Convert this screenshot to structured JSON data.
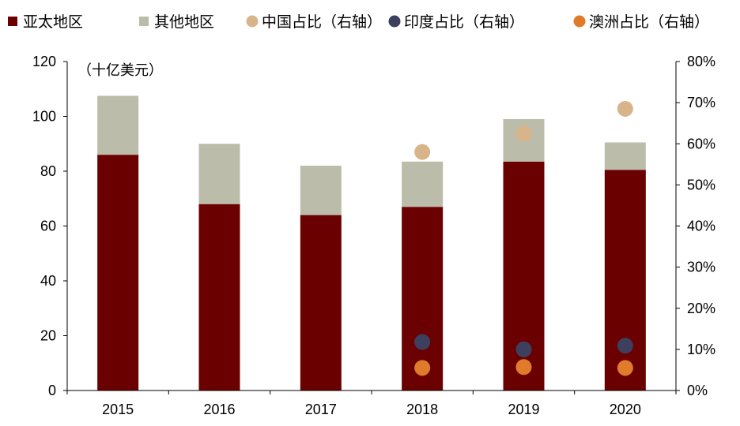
{
  "chart_data": {
    "type": "bar",
    "unit_label": "（十亿美元）",
    "categories": [
      "2015",
      "2016",
      "2017",
      "2018",
      "2019",
      "2020"
    ],
    "bar_series": [
      {
        "name": "亚太地区",
        "color": "#6b0000",
        "values": [
          86,
          68,
          64,
          67,
          83.5,
          80.5
        ]
      },
      {
        "name": "其他地区",
        "color": "#bcbcaa",
        "values": [
          21.5,
          22,
          18,
          16.5,
          15.5,
          10
        ]
      }
    ],
    "point_series": [
      {
        "name": "中国占比（右轴）",
        "color": "#d8b48a",
        "values": [
          null,
          null,
          null,
          0.58,
          0.625,
          0.685
        ]
      },
      {
        "name": "印度占比（右轴）",
        "color": "#3d3f5f",
        "values": [
          null,
          null,
          null,
          0.118,
          0.1,
          0.109
        ]
      },
      {
        "name": "澳洲占比（右轴）",
        "color": "#e07b2b",
        "values": [
          null,
          null,
          null,
          0.055,
          0.057,
          0.055
        ]
      }
    ],
    "y_left": {
      "min": 0,
      "max": 120,
      "ticks": [
        "0",
        "20",
        "40",
        "60",
        "80",
        "100",
        "120"
      ]
    },
    "y_right": {
      "min": 0,
      "max": 0.8,
      "ticks": [
        "0%",
        "10%",
        "20%",
        "30%",
        "40%",
        "50%",
        "60%",
        "70%",
        "80%"
      ]
    },
    "legend_position": "top",
    "grid": false
  }
}
